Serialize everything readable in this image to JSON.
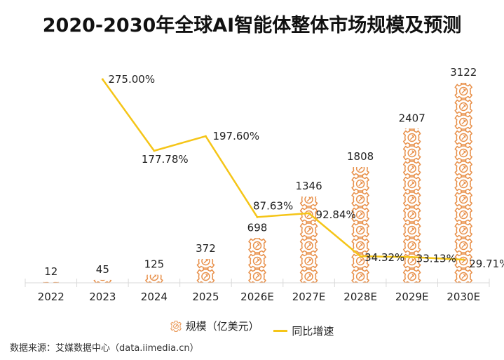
{
  "title": "2020-2030年全球AI智能体整体市场规模及预测",
  "legend": {
    "bar_label": "规模（亿美元）",
    "line_label": "同比增速",
    "bar_icon": "gear-icon",
    "colors": {
      "bar": "#e8904a",
      "line": "#f5c518"
    }
  },
  "source": "数据来源：艾媒数据中心（data.iimedia.cn）",
  "chart_data": {
    "type": "bar",
    "title": "2020-2030年全球AI智能体整体市场规模及预测",
    "xlabel": "",
    "ylabel": "",
    "categories": [
      "2022",
      "2023",
      "2024",
      "2025",
      "2026E",
      "2027E",
      "2028E",
      "2029E",
      "2030E"
    ],
    "series": [
      {
        "name": "规模（亿美元）",
        "type": "bar",
        "axis": "left",
        "values": [
          12,
          45,
          125,
          372,
          698,
          1346,
          1808,
          2407,
          3122
        ],
        "labels": [
          "12",
          "45",
          "125",
          "372",
          "698",
          "1346",
          "1808",
          "2407",
          "3122"
        ]
      },
      {
        "name": "同比增速",
        "type": "line",
        "axis": "right",
        "values": [
          null,
          275.0,
          177.78,
          197.6,
          87.63,
          92.84,
          34.32,
          33.13,
          29.71
        ],
        "labels": [
          "",
          "275.00%",
          "177.78%",
          "197.60%",
          "87.63%",
          "92.84%",
          "34.32%",
          "33.13%",
          "29.71%"
        ]
      }
    ],
    "grid": false,
    "legend_position": "bottom-center"
  }
}
